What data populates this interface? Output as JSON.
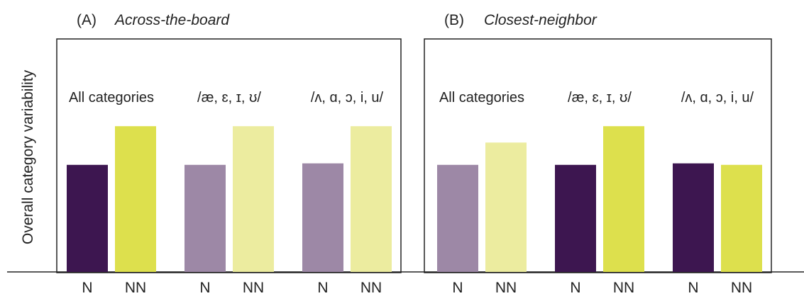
{
  "chart_data": {
    "type": "bar",
    "ylabel": "Overall category variability",
    "panels": [
      {
        "letter": "(A)",
        "title": "Across-the-board",
        "groups": [
          {
            "label": "All categories",
            "bars": [
              {
                "category": "N",
                "value": 0.72,
                "color": "#3d1650"
              },
              {
                "category": "NN",
                "value": 0.98,
                "color": "#dde04d"
              }
            ]
          },
          {
            "label": "/æ, ɛ, ɪ, ʊ/",
            "bars": [
              {
                "category": "N",
                "value": 0.72,
                "color": "#9d88a6"
              },
              {
                "category": "NN",
                "value": 0.98,
                "color": "#ecec9f"
              }
            ]
          },
          {
            "label": "/ʌ, ɑ, ɔ, i, u/",
            "bars": [
              {
                "category": "N",
                "value": 0.73,
                "color": "#9d88a6"
              },
              {
                "category": "NN",
                "value": 0.98,
                "color": "#ecec9f"
              }
            ]
          }
        ]
      },
      {
        "letter": "(B)",
        "title": "Closest-neighbor",
        "groups": [
          {
            "label": "All categories",
            "bars": [
              {
                "category": "N",
                "value": 0.72,
                "color": "#9d88a6"
              },
              {
                "category": "NN",
                "value": 0.87,
                "color": "#ecec9f"
              }
            ]
          },
          {
            "label": "/æ, ɛ, ɪ, ʊ/",
            "bars": [
              {
                "category": "N",
                "value": 0.72,
                "color": "#3d1650"
              },
              {
                "category": "NN",
                "value": 0.98,
                "color": "#dde04d"
              }
            ]
          },
          {
            "label": "/ʌ, ɑ, ɔ, i, u/",
            "bars": [
              {
                "category": "N",
                "value": 0.73,
                "color": "#3d1650"
              },
              {
                "category": "NN",
                "value": 0.72,
                "color": "#dde04d"
              }
            ]
          }
        ]
      }
    ],
    "ylim": [
      0,
      1
    ],
    "grid": false
  }
}
